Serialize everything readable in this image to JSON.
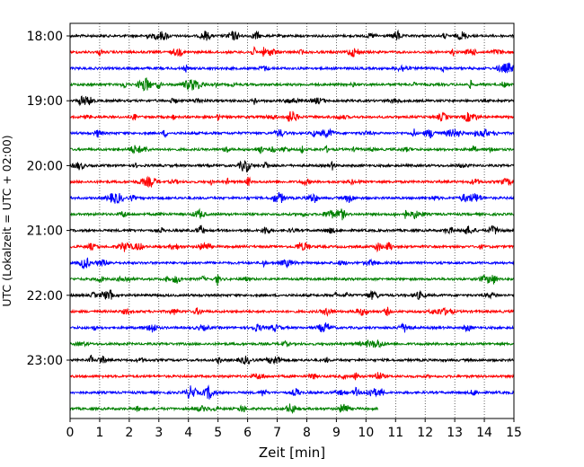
{
  "chart_data": {
    "type": "line",
    "title": "",
    "xlabel": "Zeit  [min]",
    "ylabel": "UTC (Lokalzeit = UTC + 02:00)",
    "xlim": [
      0,
      15
    ],
    "x_ticks": [
      "0",
      "1",
      "2",
      "3",
      "4",
      "5",
      "6",
      "7",
      "8",
      "9",
      "10",
      "11",
      "12",
      "13",
      "14",
      "15"
    ],
    "y_ticks": [
      "18:00",
      "19:00",
      "20:00",
      "21:00",
      "22:00",
      "23:00"
    ],
    "grid": "vertical-dotted",
    "colors": [
      "#000000",
      "#ff0000",
      "#0000ff",
      "#008000"
    ],
    "rows": [
      {
        "start": "18:00",
        "color": "#000000",
        "end_min": 15
      },
      {
        "start": "18:15",
        "color": "#ff0000",
        "end_min": 15
      },
      {
        "start": "18:30",
        "color": "#0000ff",
        "end_min": 15
      },
      {
        "start": "18:45",
        "color": "#008000",
        "end_min": 15
      },
      {
        "start": "19:00",
        "color": "#000000",
        "end_min": 15
      },
      {
        "start": "19:15",
        "color": "#ff0000",
        "end_min": 15
      },
      {
        "start": "19:30",
        "color": "#0000ff",
        "end_min": 15
      },
      {
        "start": "19:45",
        "color": "#008000",
        "end_min": 15
      },
      {
        "start": "20:00",
        "color": "#000000",
        "end_min": 15
      },
      {
        "start": "20:15",
        "color": "#ff0000",
        "end_min": 15
      },
      {
        "start": "20:30",
        "color": "#0000ff",
        "end_min": 15
      },
      {
        "start": "20:45",
        "color": "#008000",
        "end_min": 15
      },
      {
        "start": "21:00",
        "color": "#000000",
        "end_min": 15
      },
      {
        "start": "21:15",
        "color": "#ff0000",
        "end_min": 15
      },
      {
        "start": "21:30",
        "color": "#0000ff",
        "end_min": 15
      },
      {
        "start": "21:45",
        "color": "#008000",
        "end_min": 15
      },
      {
        "start": "22:00",
        "color": "#000000",
        "end_min": 15
      },
      {
        "start": "22:15",
        "color": "#ff0000",
        "end_min": 15
      },
      {
        "start": "22:30",
        "color": "#0000ff",
        "end_min": 15
      },
      {
        "start": "22:45",
        "color": "#008000",
        "end_min": 15
      },
      {
        "start": "23:00",
        "color": "#000000",
        "end_min": 15
      },
      {
        "start": "23:15",
        "color": "#ff0000",
        "end_min": 15
      },
      {
        "start": "23:30",
        "color": "#0000ff",
        "end_min": 15
      },
      {
        "start": "23:45",
        "color": "#008000",
        "end_min": 10.4
      }
    ]
  }
}
